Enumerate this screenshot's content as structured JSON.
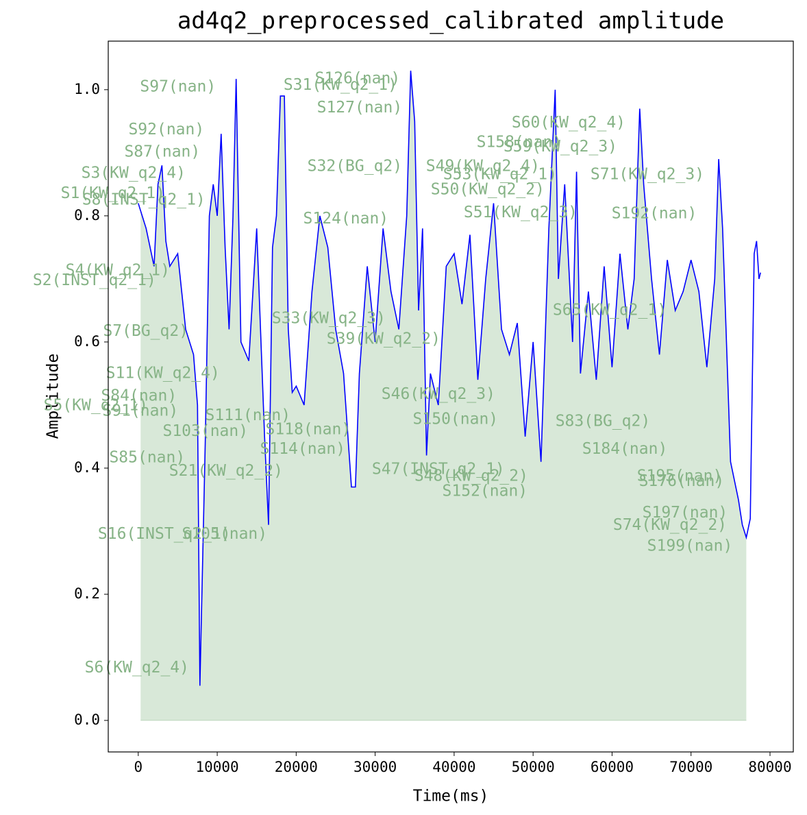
{
  "chart_data": {
    "type": "line",
    "title": "ad4q2_preprocessed_calibrated amplitude",
    "xlabel": "Time(ms)",
    "ylabel": "Amplitude",
    "xlim": [
      -3800,
      82950
    ],
    "ylim": [
      -0.05,
      1.077
    ],
    "xticks": [
      0,
      10000,
      20000,
      30000,
      40000,
      50000,
      60000,
      70000,
      80000
    ],
    "yticks": [
      {
        "value": 0,
        "label": "0.0"
      },
      0.2,
      0.4,
      0.6,
      0.8,
      {
        "value": 1,
        "label": "1.0"
      }
    ],
    "fill_color": "#8fbc8f",
    "fill_xlim": [
      300,
      77000
    ],
    "x": [
      0,
      1000,
      2000,
      2500,
      3000,
      3500,
      4000,
      5000,
      6000,
      7000,
      7500,
      7810,
      8500,
      9000,
      9500,
      10000,
      10500,
      11000,
      11500,
      12000,
      12400,
      13000,
      14000,
      15000,
      16000,
      16500,
      17000,
      17500,
      18000,
      18500,
      19000,
      19500,
      20000,
      21000,
      22000,
      23000,
      24000,
      25000,
      26000,
      27000,
      27500,
      28000,
      29000,
      30000,
      31000,
      32000,
      33000,
      34000,
      34500,
      35000,
      35500,
      36000,
      36500,
      37000,
      38000,
      39000,
      40000,
      41000,
      42000,
      43000,
      44000,
      45000,
      46000,
      47000,
      48000,
      49000,
      50000,
      51000,
      52000,
      52800,
      53200,
      54000,
      55000,
      55500,
      56000,
      57000,
      58000,
      59000,
      60000,
      61000,
      62000,
      62800,
      63500,
      64000,
      65000,
      66000,
      67000,
      68000,
      69000,
      70000,
      71000,
      72000,
      73000,
      73500,
      74000,
      75000,
      76000,
      76500,
      77000,
      77500,
      78000,
      78300,
      78600,
      78800
    ],
    "series": [
      {
        "name": "amplitude",
        "color": "#0000ff",
        "values": [
          0.82,
          0.78,
          0.72,
          0.85,
          0.88,
          0.76,
          0.72,
          0.74,
          0.62,
          0.58,
          0.5,
          0.055,
          0.45,
          0.8,
          0.85,
          0.8,
          0.93,
          0.75,
          0.62,
          0.8,
          1.017,
          0.6,
          0.57,
          0.78,
          0.45,
          0.31,
          0.75,
          0.8,
          0.99,
          0.99,
          0.62,
          0.52,
          0.53,
          0.5,
          0.68,
          0.8,
          0.75,
          0.62,
          0.55,
          0.37,
          0.37,
          0.55,
          0.72,
          0.6,
          0.78,
          0.68,
          0.62,
          0.8,
          1.03,
          0.95,
          0.65,
          0.78,
          0.42,
          0.55,
          0.5,
          0.72,
          0.74,
          0.66,
          0.77,
          0.54,
          0.7,
          0.82,
          0.62,
          0.58,
          0.63,
          0.45,
          0.6,
          0.41,
          0.78,
          1.0,
          0.7,
          0.85,
          0.6,
          0.87,
          0.55,
          0.68,
          0.54,
          0.72,
          0.56,
          0.74,
          0.62,
          0.7,
          0.97,
          0.85,
          0.7,
          0.58,
          0.73,
          0.65,
          0.68,
          0.73,
          0.68,
          0.56,
          0.7,
          0.89,
          0.78,
          0.41,
          0.35,
          0.31,
          0.29,
          0.32,
          0.74,
          0.76,
          0.7,
          0.71
        ]
      }
    ],
    "annotation_color": "#86b386",
    "annotations": [
      {
        "text": "S97(nan)",
        "x": 5030,
        "y": 1.004
      },
      {
        "text": "S31(KW_q2_1)",
        "x": 25600,
        "y": 1.007
      },
      {
        "text": "S126(nan)",
        "x": 27770,
        "y": 1.017
      },
      {
        "text": "S127(nan)",
        "x": 28030,
        "y": 0.971
      },
      {
        "text": "S60(KW_q2_4)",
        "x": 54490,
        "y": 0.947
      },
      {
        "text": "S158(nan)",
        "x": 48240,
        "y": 0.916
      },
      {
        "text": "S59(KW_q2_3)",
        "x": 53450,
        "y": 0.909
      },
      {
        "text": "S92(nan)",
        "x": 3560,
        "y": 0.936
      },
      {
        "text": "S87(nan)",
        "x": 3040,
        "y": 0.901
      },
      {
        "text": "S32(BG_q2)",
        "x": 27420,
        "y": 0.878
      },
      {
        "text": "S49(KW_q2_4)",
        "x": 43640,
        "y": 0.878
      },
      {
        "text": "S3(KW_q2_4)",
        "x": -610,
        "y": 0.867
      },
      {
        "text": "S71(KW_q2_3)",
        "x": 64470,
        "y": 0.865
      },
      {
        "text": "S53(KW_q2_1)",
        "x": 45810,
        "y": 0.865
      },
      {
        "text": "S1(KW_q2_1)",
        "x": -3210,
        "y": 0.835
      },
      {
        "text": "S8(INST_q2_1)",
        "x": 690,
        "y": 0.825
      },
      {
        "text": "S50(KW_q2_2)",
        "x": 44250,
        "y": 0.841
      },
      {
        "text": "S51(KW_q2_3)",
        "x": 48420,
        "y": 0.805
      },
      {
        "text": "S192(nan)",
        "x": 65340,
        "y": 0.803
      },
      {
        "text": "S124(nan)",
        "x": 26290,
        "y": 0.795
      },
      {
        "text": "S4(KW_q2_1)",
        "x": -2600,
        "y": 0.713
      },
      {
        "text": "S2(INST_q2_1)",
        "x": -5550,
        "y": 0.697
      },
      {
        "text": "S33(KW_q2_3)",
        "x": 24120,
        "y": 0.637
      },
      {
        "text": "S65(KW_q2_1)",
        "x": 59700,
        "y": 0.65
      },
      {
        "text": "S7(BG_q2)",
        "x": 950,
        "y": 0.617
      },
      {
        "text": "S39(KW_q2_2)",
        "x": 31060,
        "y": 0.604
      },
      {
        "text": "S11(KW_q2_4)",
        "x": 3120,
        "y": 0.55
      },
      {
        "text": "S46(KW_q2_3)",
        "x": 38000,
        "y": 0.517
      },
      {
        "text": "S84(nan)",
        "x": 90,
        "y": 0.514
      },
      {
        "text": "S5(KW_q2_1)",
        "x": -5380,
        "y": 0.499
      },
      {
        "text": "S91(nan)",
        "x": 260,
        "y": 0.49
      },
      {
        "text": "S150(nan)",
        "x": 40170,
        "y": 0.477
      },
      {
        "text": "S83(BG_q2)",
        "x": 58830,
        "y": 0.474
      },
      {
        "text": "S111(nan)",
        "x": 13880,
        "y": 0.483
      },
      {
        "text": "S103(nan)",
        "x": 8500,
        "y": 0.458
      },
      {
        "text": "S118(nan)",
        "x": 21520,
        "y": 0.461
      },
      {
        "text": "S184(nan)",
        "x": 61610,
        "y": 0.43
      },
      {
        "text": "S114(nan)",
        "x": 20820,
        "y": 0.43
      },
      {
        "text": "S85(nan)",
        "x": 1130,
        "y": 0.416
      },
      {
        "text": "S21(KW_q2_2)",
        "x": 11110,
        "y": 0.395
      },
      {
        "text": "S47(INST_q2_1)",
        "x": 38000,
        "y": 0.398
      },
      {
        "text": "S48(KW_q2_2)",
        "x": 42170,
        "y": 0.387
      },
      {
        "text": "S152(nan)",
        "x": 43900,
        "y": 0.363
      },
      {
        "text": "S195(nan)",
        "x": 68550,
        "y": 0.387
      },
      {
        "text": "S176(nan)",
        "x": 68800,
        "y": 0.379
      },
      {
        "text": "S197(nan)",
        "x": 69240,
        "y": 0.329
      },
      {
        "text": "S74(KW_q2_2)",
        "x": 67330,
        "y": 0.309
      },
      {
        "text": "S199(nan)",
        "x": 69850,
        "y": 0.276
      },
      {
        "text": "S16(INST_q2_1)",
        "x": 3300,
        "y": 0.295
      },
      {
        "text": "S105(nan)",
        "x": 10930,
        "y": 0.295
      },
      {
        "text": "S6(KW_q2_4)",
        "x": -170,
        "y": 0.083
      }
    ]
  }
}
